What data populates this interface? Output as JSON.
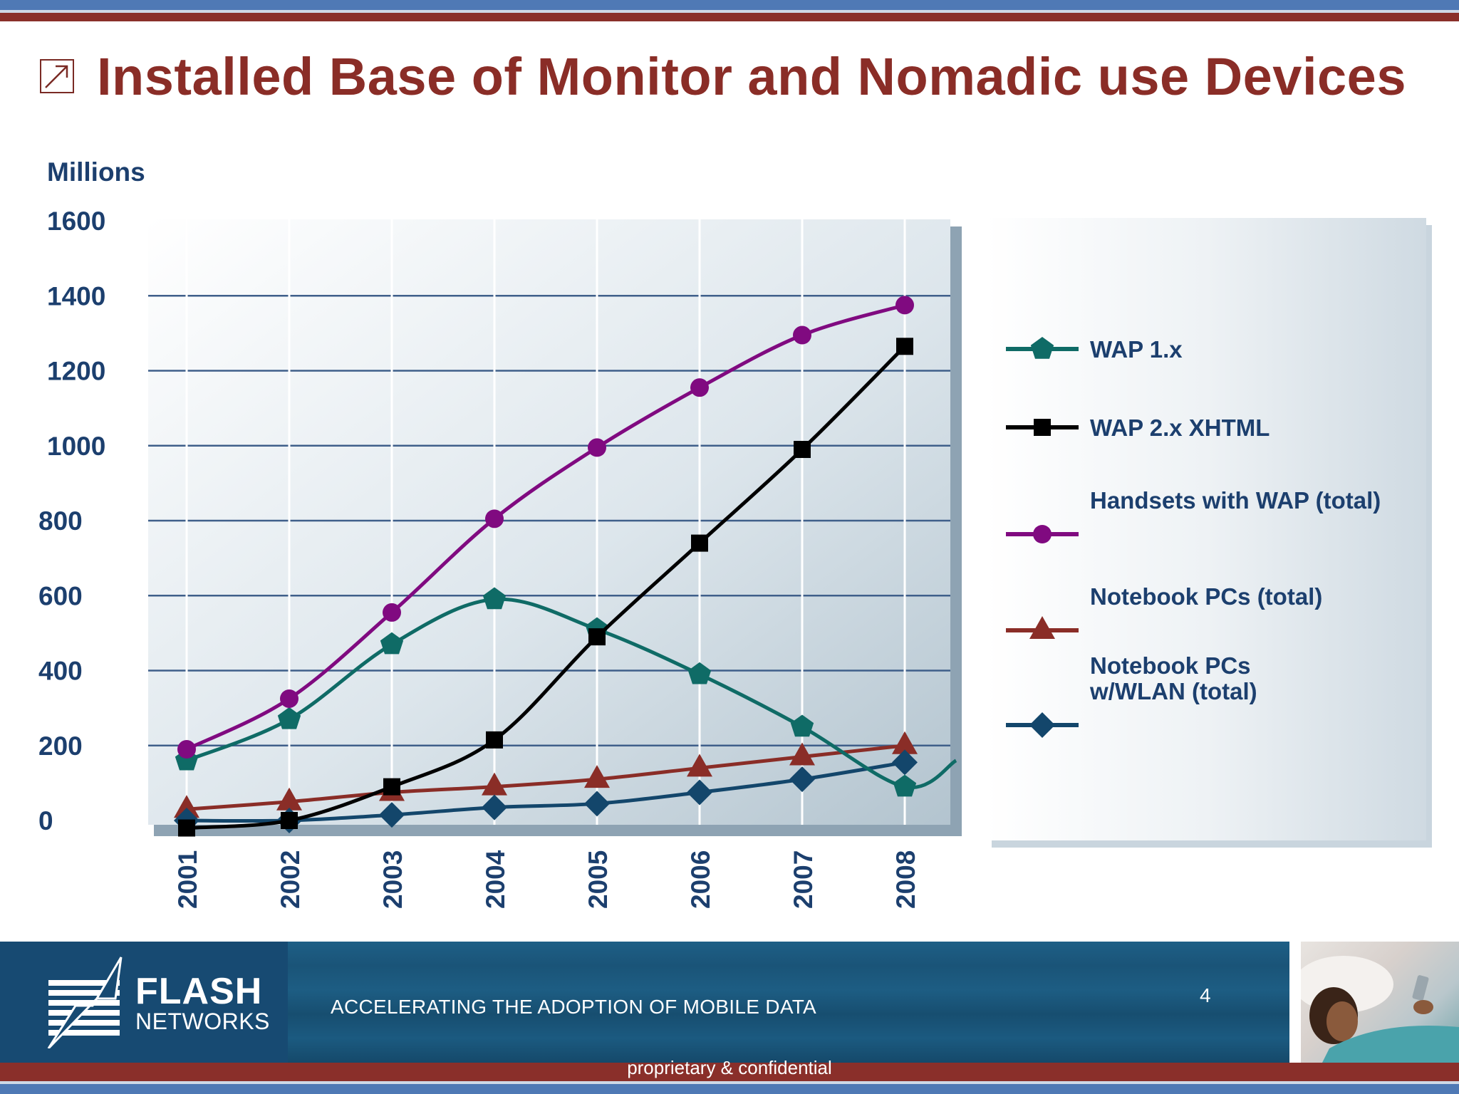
{
  "slide": {
    "title": "Installed Base of Monitor and Nomadic use Devices",
    "footer_tagline": "ACCELERATING THE ADOPTION OF MOBILE DATA",
    "page_number": "4",
    "confidential": "proprietary & confidential",
    "logo_line1": "FLASH",
    "logo_line2": "NETWORKS"
  },
  "chart_data": {
    "type": "line",
    "ylabel": "Millions",
    "ylim": [
      0,
      1600
    ],
    "yticks": [
      0,
      200,
      400,
      600,
      800,
      1000,
      1200,
      1400,
      1600
    ],
    "categories": [
      "2001",
      "2002",
      "2003",
      "2004",
      "2005",
      "2006",
      "2007",
      "2008"
    ],
    "grid": true,
    "legend_position": "right",
    "series": [
      {
        "name": "WAP 1.x",
        "color": "#0f6b66",
        "marker": "pentagon",
        "values": [
          160,
          270,
          470,
          590,
          510,
          390,
          250,
          90
        ],
        "line_end_x": 7.5,
        "line_end_value": 160
      },
      {
        "name": "WAP 2.x XHTML",
        "color": "#000000",
        "marker": "square",
        "values": [
          -20,
          0,
          90,
          215,
          490,
          740,
          990,
          1265
        ]
      },
      {
        "name": "Handsets with WAP (total)",
        "color": "#800a80",
        "marker": "circle",
        "values": [
          190,
          325,
          555,
          805,
          995,
          1155,
          1295,
          1375
        ]
      },
      {
        "name": "Notebook PCs (total)",
        "color": "#8a2d27",
        "marker": "triangle",
        "values": [
          30,
          50,
          75,
          90,
          110,
          140,
          170,
          200
        ]
      },
      {
        "name": "Notebook PCs w/WLAN (total)",
        "legend_lines": [
          "Notebook PCs",
          "w/WLAN (total)"
        ],
        "color": "#13466b",
        "marker": "diamond",
        "values": [
          0,
          0,
          15,
          35,
          45,
          75,
          110,
          155
        ]
      }
    ]
  }
}
